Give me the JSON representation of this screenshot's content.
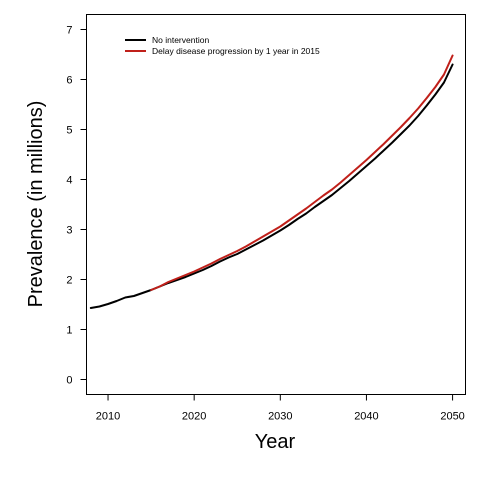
{
  "chart_data": {
    "type": "line",
    "title": "",
    "xlabel": "Year",
    "ylabel": "Prevalence (in millions)",
    "xlim": [
      2007.5,
      2051.5
    ],
    "ylim": [
      -0.3,
      7.3
    ],
    "xticks": [
      2010,
      2020,
      2030,
      2040,
      2050
    ],
    "yticks": [
      0,
      1,
      2,
      3,
      4,
      5,
      6,
      7
    ],
    "xtick_labels": [
      "2010",
      "2020",
      "2030",
      "2040",
      "2050"
    ],
    "ytick_labels": [
      "0",
      "1",
      "2",
      "3",
      "4",
      "5",
      "6",
      "7"
    ],
    "grid": false,
    "legend_position": "top-left",
    "series": [
      {
        "name": "No intervention",
        "color": "#000000",
        "x": [
          2008,
          2009,
          2010,
          2011,
          2012,
          2013,
          2014,
          2015,
          2016,
          2017,
          2018,
          2019,
          2020,
          2021,
          2022,
          2023,
          2024,
          2025,
          2026,
          2027,
          2028,
          2029,
          2030,
          2031,
          2032,
          2033,
          2034,
          2035,
          2036,
          2037,
          2038,
          2039,
          2040,
          2041,
          2042,
          2043,
          2044,
          2045,
          2046,
          2047,
          2048,
          2049,
          2050
        ],
        "values": [
          1.43,
          1.46,
          1.51,
          1.57,
          1.64,
          1.67,
          1.73,
          1.79,
          1.86,
          1.93,
          1.99,
          2.05,
          2.12,
          2.19,
          2.27,
          2.36,
          2.44,
          2.51,
          2.6,
          2.69,
          2.78,
          2.88,
          2.98,
          3.09,
          3.21,
          3.32,
          3.45,
          3.57,
          3.69,
          3.83,
          3.97,
          4.12,
          4.27,
          4.42,
          4.58,
          4.74,
          4.91,
          5.08,
          5.27,
          5.48,
          5.7,
          5.94,
          6.3
        ]
      },
      {
        "name": "Delay disease progression by 1 year in 2015",
        "color": "#c0201a",
        "x": [
          2015,
          2016,
          2017,
          2018,
          2019,
          2020,
          2021,
          2022,
          2023,
          2024,
          2025,
          2026,
          2027,
          2028,
          2029,
          2030,
          2031,
          2032,
          2033,
          2034,
          2035,
          2036,
          2037,
          2038,
          2039,
          2040,
          2041,
          2042,
          2043,
          2044,
          2045,
          2046,
          2047,
          2048,
          2049,
          2050
        ],
        "values": [
          1.79,
          1.86,
          1.95,
          2.02,
          2.09,
          2.16,
          2.24,
          2.32,
          2.41,
          2.49,
          2.57,
          2.66,
          2.76,
          2.86,
          2.96,
          3.06,
          3.18,
          3.3,
          3.42,
          3.55,
          3.68,
          3.8,
          3.94,
          4.09,
          4.24,
          4.39,
          4.55,
          4.71,
          4.88,
          5.05,
          5.23,
          5.42,
          5.63,
          5.85,
          6.1,
          6.48
        ]
      }
    ]
  }
}
